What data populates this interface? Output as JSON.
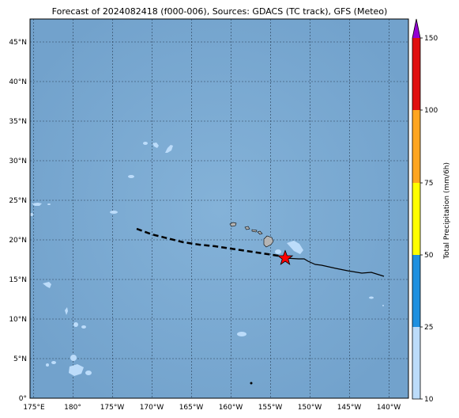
{
  "map": {
    "title": "Forecast of 2024082418 (f000-006), Sources: GDACS (TC track), GFS (Meteo)",
    "lat_labels": [
      "45°N",
      "40°N",
      "35°N",
      "30°N",
      "25°N",
      "20°N",
      "15°N",
      "10°N",
      "5°N",
      "0°"
    ],
    "lon_labels": [
      "175°E",
      "180°",
      "175°W",
      "170°W",
      "165°W",
      "160°W",
      "155°W",
      "150°W",
      "145°W",
      "140°W"
    ],
    "extent": {
      "lon_min": -185.5,
      "lon_max": -137.7,
      "lat_min": 0,
      "lat_max": 48
    },
    "grid": true,
    "ocean_color": "#78a8d0",
    "land_color": "#b4b4b4",
    "precip_light_color": "#bcdcfa",
    "storm": {
      "marker": "star",
      "color": "#ff0000",
      "position": {
        "lon": -153.0,
        "lat": 17.7
      },
      "past_track": [
        [
          -153.0,
          17.7
        ],
        [
          -151,
          17.5
        ],
        [
          -149.5,
          17.4
        ],
        [
          -148.7,
          16.9
        ],
        [
          -147,
          16.6
        ],
        [
          -145,
          16.1
        ],
        [
          -143.5,
          15.8
        ],
        [
          -142.3,
          15.9
        ],
        [
          -141.0,
          15.4
        ]
      ],
      "forecast_track": [
        [
          -172,
          21.3
        ],
        [
          -170,
          20.6
        ],
        [
          -168,
          20.1
        ],
        [
          -166,
          19.6
        ],
        [
          -164,
          19.4
        ],
        [
          -162,
          19.1
        ],
        [
          -160,
          18.8
        ],
        [
          -158,
          18.5
        ],
        [
          -156,
          18.2
        ],
        [
          -154,
          17.9
        ],
        [
          -153.0,
          17.7
        ]
      ]
    }
  },
  "colorbar": {
    "label": "Total Precipitation (mm/6h)",
    "ticks": [
      "10",
      "25",
      "50",
      "75",
      "100",
      "150"
    ],
    "bands": [
      {
        "from": "10",
        "to": "25",
        "color": "#bcdcfa"
      },
      {
        "from": "25",
        "to": "50",
        "color": "#1e90e0"
      },
      {
        "from": "50",
        "to": "75",
        "color": "#ffff00"
      },
      {
        "from": "75",
        "to": "100",
        "color": "#ffa520"
      },
      {
        "from": "100",
        "to": "150",
        "color": "#e01010"
      }
    ],
    "extend_color": "#9400d3"
  }
}
